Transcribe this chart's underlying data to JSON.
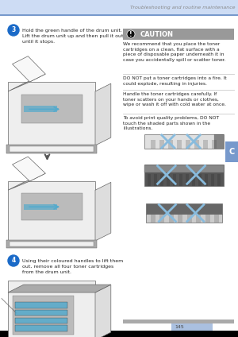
{
  "page_bg": "#ffffff",
  "header_bar_color": "#cddcf4",
  "header_line_color": "#7799cc",
  "header_text": "Troubleshooting and routine maintenance",
  "header_text_color": "#888888",
  "header_text_size": 4.5,
  "footer_bar_color": "#000000",
  "footer_page_num": "145",
  "footer_page_num_color": "#444444",
  "footer_page_num_size": 4.5,
  "footer_highlight_color": "#aac0e0",
  "sidebar_label": "C",
  "sidebar_bg": "#7799cc",
  "sidebar_text_color": "#ffffff",
  "sidebar_fontsize": 7,
  "step3_num": "3",
  "step3_text": "Hold the green handle of the drum unit.\nLift the drum unit up and then pull it out\nuntil it stops.",
  "step4_num": "4",
  "step4_text": "Using their coloured handles to lift them\nout, remove all four toner cartridges\nfrom the drum unit.",
  "step_text_size": 4.5,
  "step_num_bg": "#1a6ac8",
  "step_num_color": "#ffffff",
  "caution_header_bg": "#999999",
  "caution_header_text": "CAUTION",
  "caution_header_text_color": "#ffffff",
  "caution_text_size": 4.3,
  "caution_body_color": "#222222",
  "caution_text1": "We recommend that you place the toner\ncartridges on a clean, flat surface with a\npiece of disposable paper underneath it in\ncase you accidentally spill or scatter toner.",
  "caution_text2": "DO NOT put a toner cartridges into a fire. It\ncould explode, resulting in injuries.",
  "caution_text3": "Handle the toner cartridges carefully. If\ntoner scatters on your hands or clothes,\nwipe or wash it off with cold water at once.",
  "caution_text4": "To avoid print quality problems, DO NOT\ntouch the shaded parts shown in the\nillustrations.",
  "divider_color": "#cccccc",
  "printer_outline": "#666666",
  "printer_light": "#eeeeee",
  "printer_mid": "#dddddd",
  "printer_dark": "#aaaaaa",
  "blue_color": "#55aacc",
  "cross_color": "#88bbdd",
  "toner_dark": "#444444",
  "toner_stripe": "#888888"
}
